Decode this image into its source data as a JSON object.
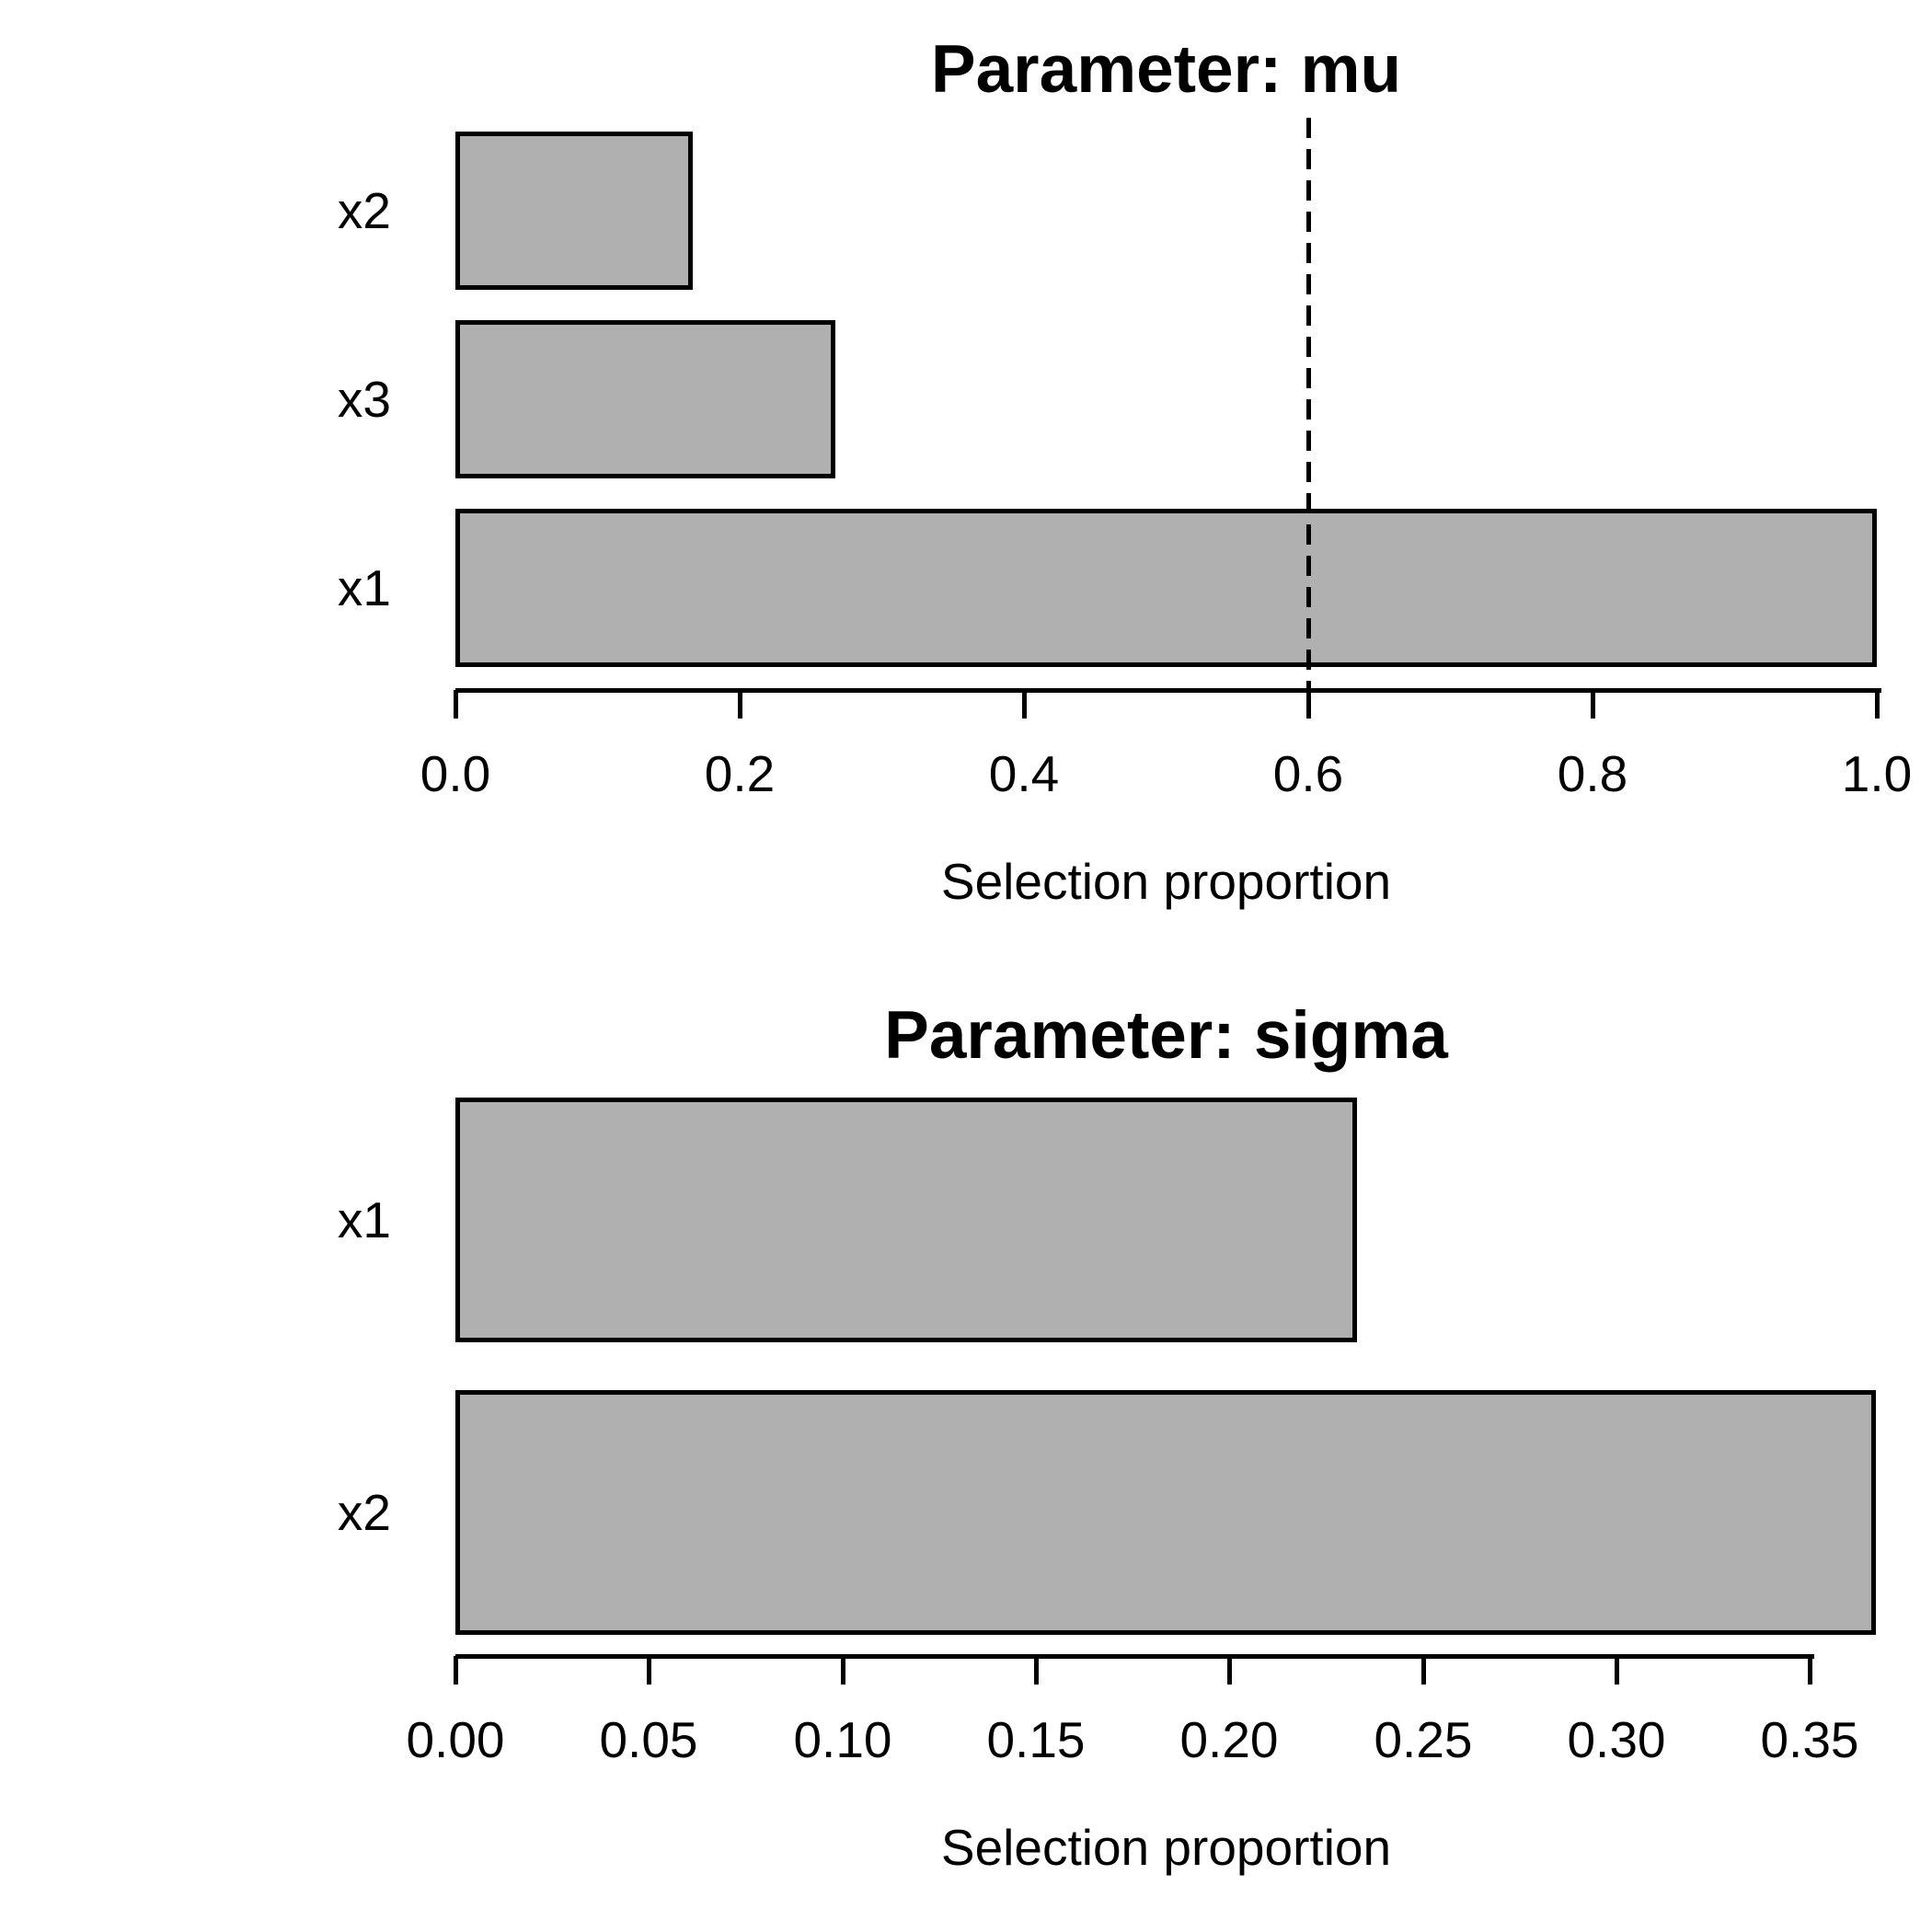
{
  "figure": {
    "background": "#FFFFFF",
    "bar_fill": "#B0B0B0",
    "bar_border": "#000000",
    "text_color": "#000000"
  },
  "chart_data": [
    {
      "type": "bar",
      "orientation": "horizontal",
      "title": "Parameter: mu",
      "xlabel": "Selection proportion",
      "categories": [
        "x2",
        "x3",
        "x1"
      ],
      "values": [
        0.167,
        0.267,
        1.0
      ],
      "xlim": [
        0,
        1.0
      ],
      "xticks": [
        0,
        0.2,
        0.4,
        0.6,
        0.8,
        1.0
      ],
      "xtick_labels": [
        "0.0",
        "0.2",
        "0.4",
        "0.6",
        "0.8",
        "1.0"
      ],
      "grid": false,
      "legend": "none",
      "threshold_line": {
        "value": 0.6,
        "style": "dashed",
        "color": "#000000"
      }
    },
    {
      "type": "bar",
      "orientation": "horizontal",
      "title": "Parameter: sigma",
      "xlabel": "Selection proportion",
      "categories": [
        "x1",
        "x2"
      ],
      "values": [
        0.233,
        0.367
      ],
      "xlim": [
        0,
        0.367
      ],
      "xticks": [
        0,
        0.05,
        0.1,
        0.15,
        0.2,
        0.25,
        0.3,
        0.35
      ],
      "xtick_labels": [
        "0.00",
        "0.05",
        "0.10",
        "0.15",
        "0.20",
        "0.25",
        "0.30",
        "0.35"
      ],
      "grid": false,
      "legend": "none",
      "threshold_line": null
    }
  ]
}
